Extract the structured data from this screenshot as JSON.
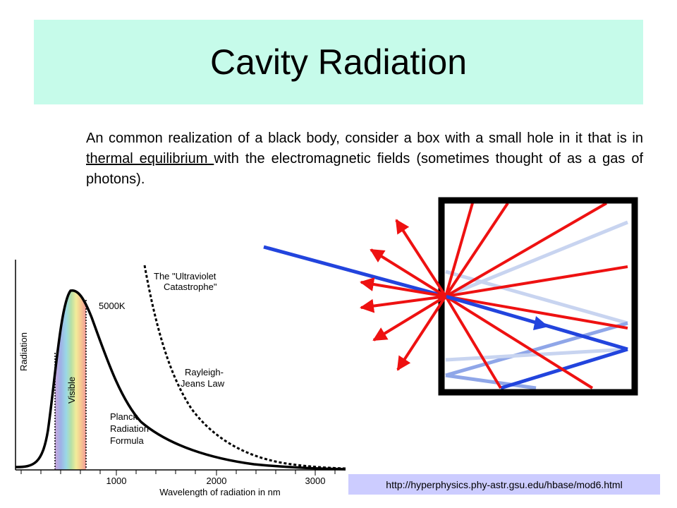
{
  "slide": {
    "title": "Cavity Radiation",
    "body_part1": "An common realization of a black body, consider a box with a small hole in it that is in ",
    "body_link": "thermal equilibrium ",
    "body_part2": "with the electromagnetic fields (sometimes thought of as a gas of photons).",
    "source_url": "http://hyperphysics.phy-astr.gsu.edu/hbase/mod6.html"
  },
  "spectrum_plot": {
    "y_axis_label": "Radiation",
    "x_axis_label": "Wavelength of radiation in nm",
    "x_ticks": [
      "1000",
      "2000",
      "3000"
    ],
    "temperature_label": "5000K",
    "visible_label": "Visible",
    "uv_label_line1": "The \"Ultraviolet",
    "uv_label_line2": "Catastrophe\"",
    "rj_label_line1": "Rayleigh-",
    "rj_label_line2": "Jeans Law",
    "planck_label_line1": "Planck",
    "planck_label_line2": "Radiation",
    "planck_label_line3": "Formula",
    "colors": {
      "planck_curve": "#000000",
      "rayleigh_jeans_curve": "#000000"
    }
  },
  "cavity_diagram": {
    "colors": {
      "box": "#000000",
      "emitted_rays": "#ee1111",
      "incoming_ray": "#2244dd",
      "reflected_ray_light": "#c8d4f0",
      "reflected_ray_mid": "#8fa6e8"
    }
  }
}
